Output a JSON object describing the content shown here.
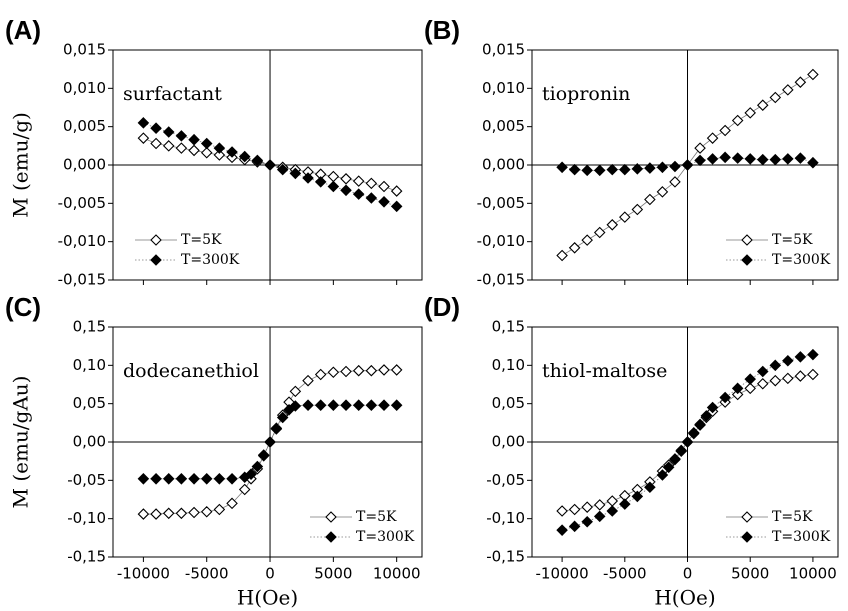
{
  "chart_data": [
    {
      "type": "scatter",
      "panel": "(A)",
      "annotation": "surfactant",
      "ylabel": "M (emu/g)",
      "xtick_labels": false,
      "legend": "lower left",
      "x": [
        -10000,
        -9000,
        -8000,
        -7000,
        -6000,
        -5000,
        -4000,
        -3000,
        -2000,
        -1000,
        0,
        1000,
        2000,
        3000,
        4000,
        5000,
        6000,
        7000,
        8000,
        9000,
        10000
      ],
      "series": [
        {
          "name": "T=5K",
          "color": "#000000",
          "marker": "open",
          "line": "solid",
          "values": [
            0.0035,
            0.0028,
            0.0025,
            0.0022,
            0.0019,
            0.0016,
            0.0013,
            0.001,
            0.0007,
            0.0004,
            0.0,
            -0.0003,
            -0.0006,
            -0.0009,
            -0.0012,
            -0.0015,
            -0.0018,
            -0.0021,
            -0.0024,
            -0.0028,
            -0.0034
          ]
        },
        {
          "name": "T=300K",
          "color": "#000000",
          "marker": "filled",
          "line": "dotted",
          "values": [
            0.0055,
            0.0048,
            0.0043,
            0.0038,
            0.0033,
            0.0028,
            0.0022,
            0.0017,
            0.0011,
            0.0006,
            0.0,
            -0.0006,
            -0.0011,
            -0.0017,
            -0.0022,
            -0.0028,
            -0.0033,
            -0.0038,
            -0.0043,
            -0.0048,
            -0.0054
          ]
        }
      ],
      "xlim": [
        -12400,
        12000
      ],
      "ylim": [
        -0.015,
        0.015
      ],
      "xticks": [
        -10000,
        -5000,
        0,
        5000,
        10000
      ],
      "yticks": [
        {
          "value": -0.015,
          "label": "-0,015"
        },
        {
          "value": -0.01,
          "label": "-0,010"
        },
        {
          "value": -0.005,
          "label": "-0,005"
        },
        {
          "value": 0,
          "label": "0,000"
        },
        {
          "value": 0.005,
          "label": "0,005"
        },
        {
          "value": 0.01,
          "label": "0,010"
        },
        {
          "value": 0.015,
          "label": "0,015"
        }
      ]
    },
    {
      "type": "scatter",
      "panel": "(B)",
      "annotation": "tiopronin",
      "xtick_labels": false,
      "legend": "lower right",
      "x": [
        -10000,
        -9000,
        -8000,
        -7000,
        -6000,
        -5000,
        -4000,
        -3000,
        -2000,
        -1000,
        0,
        1000,
        2000,
        3000,
        4000,
        5000,
        6000,
        7000,
        8000,
        9000,
        10000
      ],
      "series": [
        {
          "name": "T=5K",
          "color": "#000000",
          "marker": "open",
          "line": "solid",
          "values": [
            -0.0118,
            -0.0108,
            -0.0098,
            -0.0088,
            -0.0078,
            -0.0068,
            -0.0058,
            -0.0045,
            -0.0035,
            -0.0022,
            0.0,
            0.0022,
            0.0035,
            0.0045,
            0.0058,
            0.0068,
            0.0078,
            0.0088,
            0.0098,
            0.0108,
            0.0118
          ]
        },
        {
          "name": "T=300K",
          "color": "#000000",
          "marker": "filled",
          "line": "dotted",
          "values": [
            -0.0003,
            -0.0006,
            -0.0007,
            -0.0007,
            -0.0006,
            -0.0006,
            -0.0005,
            -0.0004,
            -0.0003,
            -0.0002,
            0.0,
            0.0006,
            0.0008,
            0.001,
            0.0009,
            0.0008,
            0.0007,
            0.0007,
            0.0008,
            0.0009,
            0.0003
          ]
        }
      ],
      "xlim": [
        -12400,
        12000
      ],
      "ylim": [
        -0.015,
        0.015
      ],
      "xticks": [
        -10000,
        -5000,
        0,
        5000,
        10000
      ],
      "yticks": [
        {
          "value": -0.015,
          "label": "-0,015"
        },
        {
          "value": -0.01,
          "label": "-0,010"
        },
        {
          "value": -0.005,
          "label": "-0,005"
        },
        {
          "value": 0,
          "label": "0,000"
        },
        {
          "value": 0.005,
          "label": "0,005"
        },
        {
          "value": 0.01,
          "label": "0,010"
        },
        {
          "value": 0.015,
          "label": "0,015"
        }
      ]
    },
    {
      "type": "scatter",
      "panel": "(C)",
      "annotation": "dodecanethiol",
      "ylabel": "M (emu/gAu)",
      "xlabel": "H(Oe)",
      "xtick_labels": true,
      "legend": "lower right",
      "x": [
        -10000,
        -9000,
        -8000,
        -7000,
        -6000,
        -5000,
        -4000,
        -3000,
        -2000,
        -1500,
        -1000,
        -500,
        0,
        500,
        1000,
        1500,
        2000,
        3000,
        4000,
        5000,
        6000,
        7000,
        8000,
        9000,
        10000
      ],
      "series": [
        {
          "name": "T=5K",
          "color": "#000000",
          "marker": "open",
          "line": "solid",
          "values": [
            -0.094,
            -0.094,
            -0.093,
            -0.093,
            -0.092,
            -0.091,
            -0.088,
            -0.08,
            -0.062,
            -0.048,
            -0.035,
            -0.018,
            0.0,
            0.018,
            0.035,
            0.052,
            0.066,
            0.08,
            0.088,
            0.091,
            0.092,
            0.093,
            0.093,
            0.094,
            0.094
          ]
        },
        {
          "name": "T=300K",
          "color": "#000000",
          "marker": "filled",
          "line": "dotted",
          "values": [
            -0.048,
            -0.048,
            -0.048,
            -0.048,
            -0.048,
            -0.048,
            -0.048,
            -0.048,
            -0.046,
            -0.042,
            -0.032,
            -0.017,
            0.0,
            0.017,
            0.032,
            0.042,
            0.047,
            0.048,
            0.048,
            0.048,
            0.048,
            0.048,
            0.048,
            0.048,
            0.048
          ]
        }
      ],
      "xlim": [
        -12400,
        12000
      ],
      "ylim": [
        -0.15,
        0.15
      ],
      "xticks": [
        -10000,
        -5000,
        0,
        5000,
        10000
      ],
      "yticks": [
        {
          "value": -0.15,
          "label": "-0,15"
        },
        {
          "value": -0.1,
          "label": "-0,10"
        },
        {
          "value": -0.05,
          "label": "-0,05"
        },
        {
          "value": 0,
          "label": "0,00"
        },
        {
          "value": 0.05,
          "label": "0,05"
        },
        {
          "value": 0.1,
          "label": "0,10"
        },
        {
          "value": 0.15,
          "label": "0,15"
        }
      ]
    },
    {
      "type": "scatter",
      "panel": "(D)",
      "annotation": "thiol-maltose",
      "xlabel": "H(Oe)",
      "xtick_labels": true,
      "legend": "lower right",
      "x": [
        -10000,
        -9000,
        -8000,
        -7000,
        -6000,
        -5000,
        -4000,
        -3000,
        -2000,
        -1500,
        -1000,
        -500,
        0,
        500,
        1000,
        1500,
        2000,
        3000,
        4000,
        5000,
        6000,
        7000,
        8000,
        9000,
        10000
      ],
      "series": [
        {
          "name": "T=5K",
          "color": "#000000",
          "marker": "open",
          "line": "solid",
          "values": [
            -0.09,
            -0.088,
            -0.085,
            -0.082,
            -0.077,
            -0.07,
            -0.062,
            -0.052,
            -0.038,
            -0.03,
            -0.022,
            -0.011,
            0.0,
            0.011,
            0.022,
            0.032,
            0.04,
            0.052,
            0.062,
            0.07,
            0.076,
            0.08,
            0.083,
            0.086,
            0.088
          ]
        },
        {
          "name": "T=300K",
          "color": "#000000",
          "marker": "filled",
          "line": "dotted",
          "values": [
            -0.115,
            -0.11,
            -0.104,
            -0.097,
            -0.09,
            -0.081,
            -0.071,
            -0.059,
            -0.043,
            -0.033,
            -0.023,
            -0.012,
            0.0,
            0.012,
            0.023,
            0.034,
            0.045,
            0.058,
            0.07,
            0.082,
            0.092,
            0.1,
            0.106,
            0.111,
            0.114
          ]
        }
      ],
      "xlim": [
        -12400,
        12000
      ],
      "ylim": [
        -0.15,
        0.15
      ],
      "xticks": [
        -10000,
        -5000,
        0,
        5000,
        10000
      ],
      "yticks": [
        {
          "value": -0.15,
          "label": "-0,15"
        },
        {
          "value": -0.1,
          "label": "-0,10"
        },
        {
          "value": -0.05,
          "label": "-0,05"
        },
        {
          "value": 0,
          "label": "0,00"
        },
        {
          "value": 0.05,
          "label": "0,05"
        },
        {
          "value": 0.1,
          "label": "0,10"
        },
        {
          "value": 0.15,
          "label": "0,15"
        }
      ]
    }
  ]
}
